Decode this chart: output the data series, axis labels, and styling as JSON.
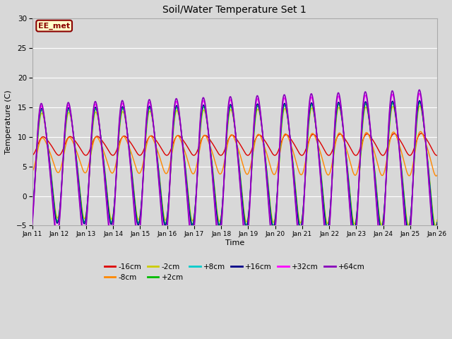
{
  "title": "Soil/Water Temperature Set 1",
  "xlabel": "Time",
  "ylabel": "Temperature (C)",
  "xlim_start": 0,
  "xlim_end": 15,
  "ylim": [
    -5,
    30
  ],
  "yticks": [
    -5,
    0,
    5,
    10,
    15,
    20,
    25,
    30
  ],
  "background_color": "#d8d8d8",
  "grid_color": "#ffffff",
  "annotation_text": "EE_met",
  "annotation_bg": "#ffffcc",
  "annotation_border": "#8b0000",
  "series": [
    {
      "label": "-16cm",
      "color": "#dd0000",
      "lw": 1.0
    },
    {
      "label": "-8cm",
      "color": "#ff8800",
      "lw": 1.0
    },
    {
      "label": "-2cm",
      "color": "#cccc00",
      "lw": 1.0
    },
    {
      "label": "+2cm",
      "color": "#00bb00",
      "lw": 1.0
    },
    {
      "label": "+8cm",
      "color": "#00cccc",
      "lw": 1.0
    },
    {
      "label": "+16cm",
      "color": "#000088",
      "lw": 1.0
    },
    {
      "label": "+32cm",
      "color": "#ff00ff",
      "lw": 1.2
    },
    {
      "label": "+64cm",
      "color": "#8800bb",
      "lw": 1.2
    }
  ],
  "xtick_labels": [
    "Jan 11",
    "Jan 12",
    "Jan 13",
    "Jan 14",
    "Jan 15",
    "Jan 16",
    "Jan 17",
    "Jan 18",
    "Jan 19",
    "Jan 20",
    "Jan 21",
    "Jan 22",
    "Jan 23",
    "Jan 24",
    "Jan 25",
    "Jan 26"
  ],
  "xtick_positions": [
    0,
    1,
    2,
    3,
    4,
    5,
    6,
    7,
    8,
    9,
    10,
    11,
    12,
    13,
    14,
    15
  ],
  "figsize": [
    6.4,
    4.8
  ],
  "dpi": 100
}
